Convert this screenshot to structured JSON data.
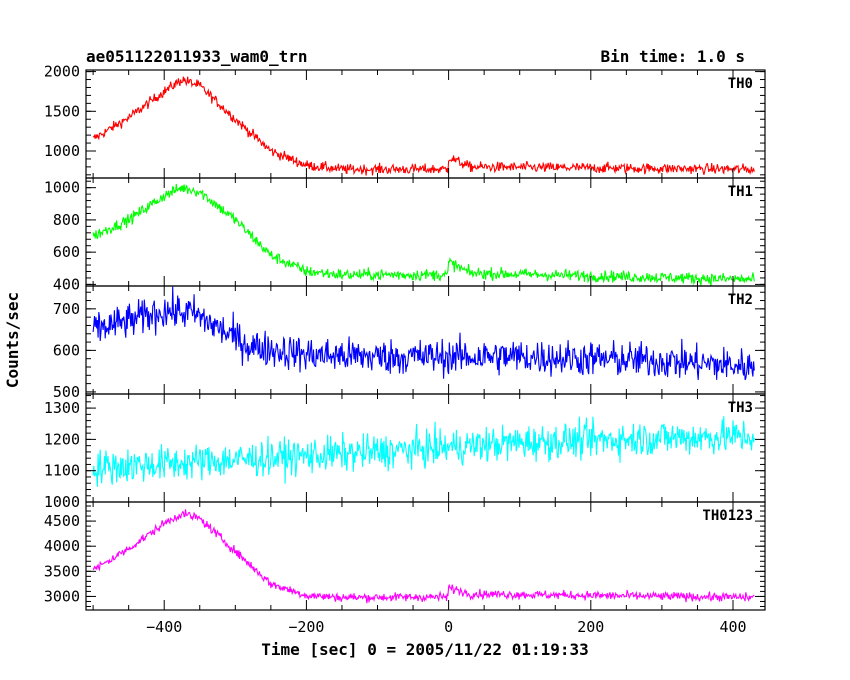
{
  "header": {
    "title": "ae051122011933_wam0_trn",
    "bin_time": "Bin time: 1.0 s"
  },
  "axes": {
    "xlabel": "Time [sec] 0 = 2005/11/22 01:19:33",
    "ylabel": "Counts/sec"
  },
  "chart_data": {
    "type": "line",
    "title": "ae051122011933_wam0_trn",
    "xlabel": "Time [sec] 0 = 2005/11/22 01:19:33",
    "ylabel": "Counts/sec",
    "xlim": [
      -510,
      445
    ],
    "x_ticks": [
      -400,
      -200,
      0,
      200,
      400
    ],
    "x_tick_labels": [
      "−400",
      "−200",
      "0",
      "200",
      "400"
    ],
    "x_range": [
      -500,
      430
    ],
    "x_step": 1,
    "series": [
      {
        "name": "TH0",
        "color": "#ff0000",
        "ylim": [
          660,
          2020
        ],
        "y_ticks": [
          1000,
          1500,
          2000
        ],
        "y_tick_labels": [
          "1000",
          "1500",
          "2000"
        ],
        "profile": [
          [
            -500,
            1150
          ],
          [
            -450,
            1420
          ],
          [
            -400,
            1750
          ],
          [
            -375,
            1900
          ],
          [
            -350,
            1820
          ],
          [
            -300,
            1400
          ],
          [
            -250,
            1000
          ],
          [
            -200,
            820
          ],
          [
            -150,
            770
          ],
          [
            -1,
            770
          ],
          [
            0,
            920
          ],
          [
            30,
            800
          ],
          [
            430,
            770
          ]
        ],
        "noise": 45
      },
      {
        "name": "TH1",
        "color": "#00ff00",
        "ylim": [
          390,
          1060
        ],
        "y_ticks": [
          400,
          600,
          800,
          1000
        ],
        "y_tick_labels": [
          "400",
          "600",
          "800",
          "1000"
        ],
        "profile": [
          [
            -500,
            700
          ],
          [
            -450,
            800
          ],
          [
            -400,
            950
          ],
          [
            -375,
            1000
          ],
          [
            -350,
            975
          ],
          [
            -300,
            800
          ],
          [
            -250,
            580
          ],
          [
            -200,
            480
          ],
          [
            -150,
            460
          ],
          [
            -1,
            460
          ],
          [
            0,
            540
          ],
          [
            30,
            470
          ],
          [
            430,
            430
          ]
        ],
        "noise": 25
      },
      {
        "name": "TH2",
        "color": "#0000ff",
        "ylim": [
          495,
          755
        ],
        "y_ticks": [
          500,
          600,
          700
        ],
        "y_tick_labels": [
          "500",
          "600",
          "700"
        ],
        "profile": [
          [
            -500,
            650
          ],
          [
            -450,
            670
          ],
          [
            -400,
            695
          ],
          [
            -360,
            690
          ],
          [
            -320,
            650
          ],
          [
            -280,
            610
          ],
          [
            -200,
            590
          ],
          [
            -100,
            585
          ],
          [
            0,
            585
          ],
          [
            100,
            585
          ],
          [
            200,
            580
          ],
          [
            300,
            575
          ],
          [
            430,
            560
          ]
        ],
        "noise": 30
      },
      {
        "name": "TH3",
        "color": "#00ffff",
        "ylim": [
          1000,
          1345
        ],
        "y_ticks": [
          1000,
          1100,
          1200,
          1300
        ],
        "y_tick_labels": [
          "1000",
          "1100",
          "1200",
          "1300"
        ],
        "profile": [
          [
            -500,
            1110
          ],
          [
            -300,
            1135
          ],
          [
            -100,
            1160
          ],
          [
            100,
            1190
          ],
          [
            300,
            1205
          ],
          [
            430,
            1210
          ]
        ],
        "noise": 40
      },
      {
        "name": "TH0123",
        "color": "#ff00ff",
        "ylim": [
          2730,
          4880
        ],
        "y_ticks": [
          3000,
          3500,
          4000,
          4500
        ],
        "y_tick_labels": [
          "3000",
          "3500",
          "4000",
          "4500"
        ],
        "profile": [
          [
            -500,
            3520
          ],
          [
            -450,
            3950
          ],
          [
            -400,
            4450
          ],
          [
            -375,
            4650
          ],
          [
            -350,
            4550
          ],
          [
            -300,
            3900
          ],
          [
            -250,
            3250
          ],
          [
            -200,
            3020
          ],
          [
            -150,
            2980
          ],
          [
            -1,
            2990
          ],
          [
            0,
            3180
          ],
          [
            30,
            3050
          ],
          [
            430,
            2980
          ]
        ],
        "noise": 60
      }
    ]
  }
}
